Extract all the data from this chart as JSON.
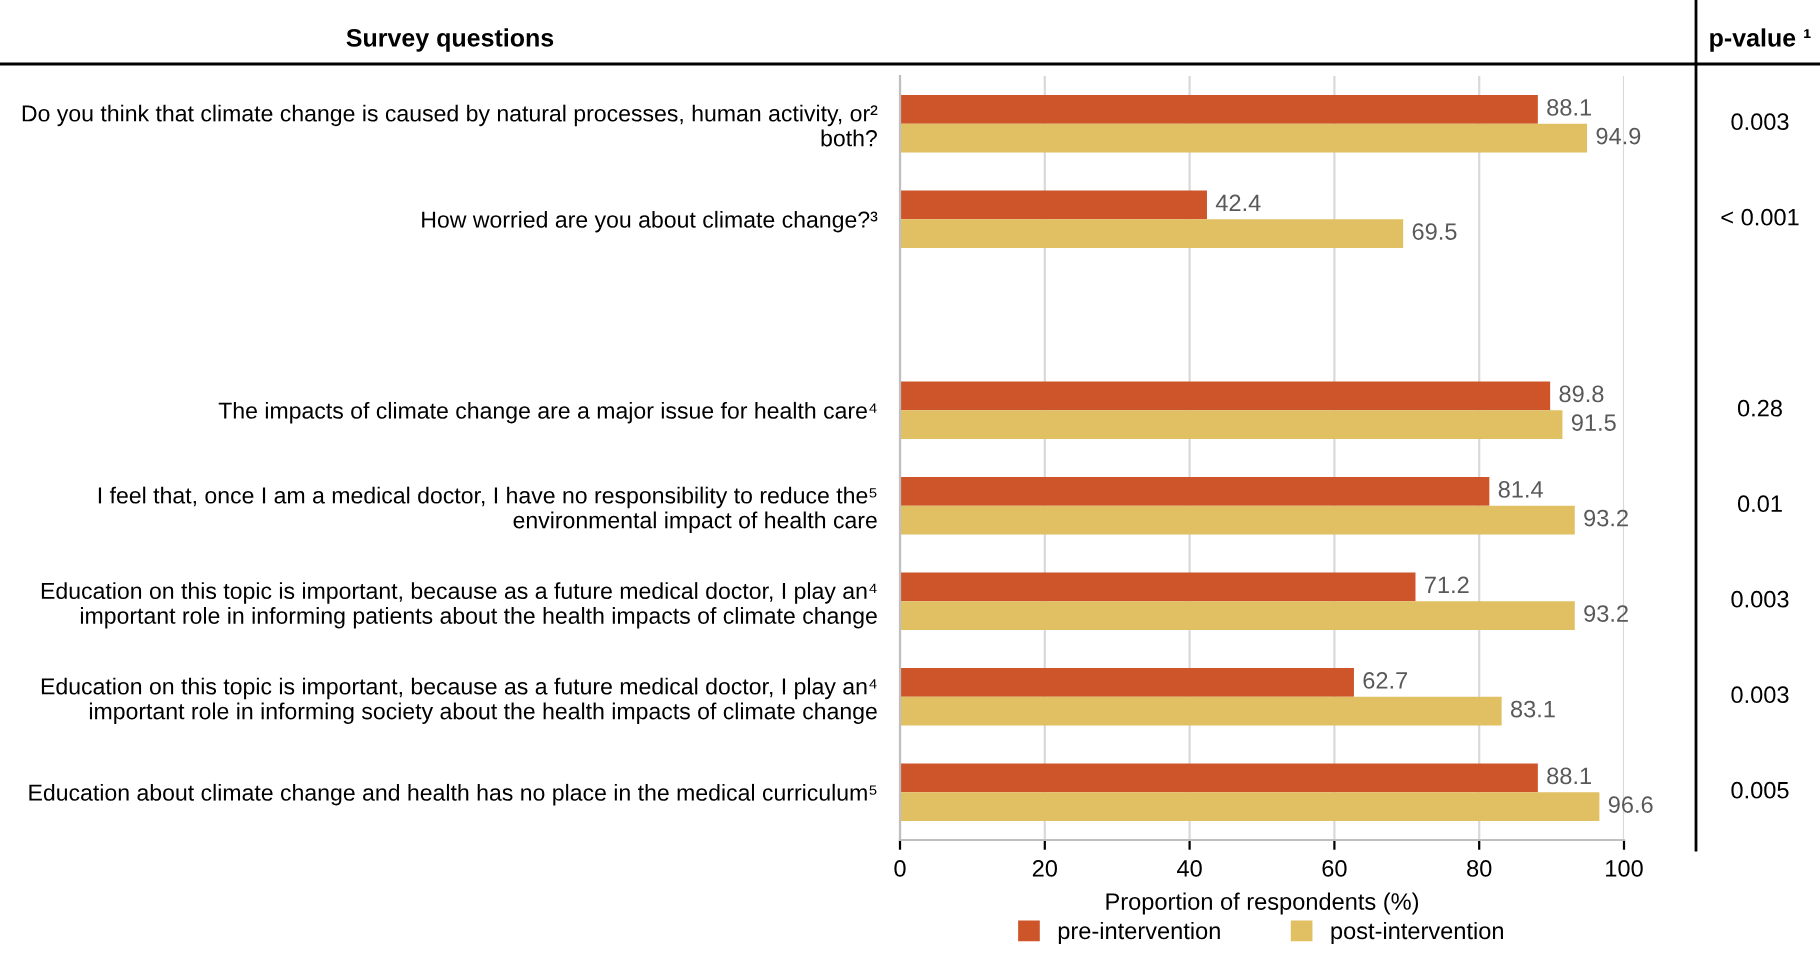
{
  "chart_data": {
    "type": "bar",
    "orientation": "horizontal",
    "ylabel": "Survey questions",
    "y2label": "p-value ¹",
    "xlabel": "Proportion of respondents (%)",
    "categories": [
      "Do you think that climate change is caused by natural processes, human activity, or²\nboth?",
      "How worried are you about climate change?³",
      null,
      "The impacts of climate change are a major issue for health care⁴",
      "I feel that, once I am a medical doctor, I have no responsibility to reduce the⁵\nenvironmental impact of health care",
      "Education on this topic is important, because as a future medical doctor, I play an⁴\nimportant role in informing patients about the health impacts of climate change",
      "Education on this topic is important, because as a future medical doctor, I play an⁴\nimportant role in informing society about the health impacts of climate change",
      "Education about climate change and health has no place in the medical curriculum⁵"
    ],
    "series": [
      {
        "name": "pre-intervention",
        "color": "#cd5529",
        "values": [
          88.1,
          42.4,
          null,
          89.8,
          81.4,
          71.2,
          62.7,
          88.1
        ]
      },
      {
        "name": "post-intervention",
        "color": "#e0c062",
        "values": [
          94.9,
          69.5,
          null,
          91.5,
          93.2,
          93.2,
          83.1,
          96.6
        ]
      }
    ],
    "annotations": [
      "0.003",
      "< 0.001",
      "0.28",
      "0.01",
      "0.003",
      "0.003",
      "0.005"
    ],
    "xlim": [
      0,
      100
    ],
    "xticks": [
      0,
      20,
      40,
      60,
      80,
      100
    ],
    "grid": "x",
    "legend": "bottom",
    "data_labels": true
  }
}
